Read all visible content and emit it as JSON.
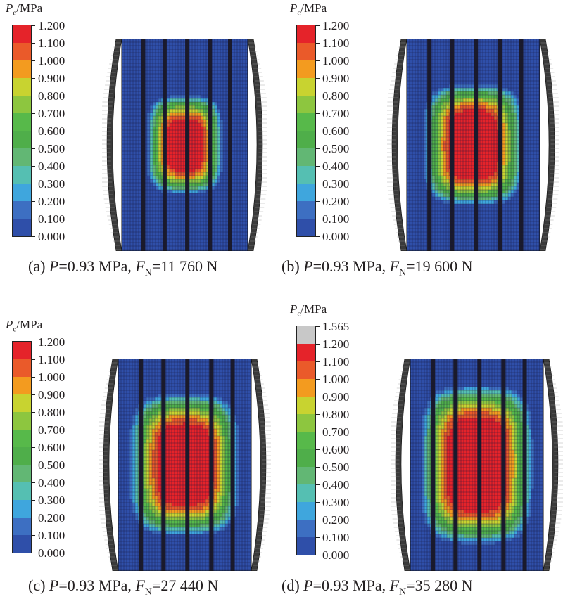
{
  "legend_title_var": "P",
  "legend_title_sub": "c",
  "legend_title_unit": "/MPa",
  "scale_standard": {
    "labels": [
      "1.200",
      "1.100",
      "1.000",
      "0.900",
      "0.800",
      "0.700",
      "0.600",
      "0.500",
      "0.400",
      "0.300",
      "0.200",
      "0.100",
      "0.000"
    ],
    "colors": [
      "#e5232a",
      "#ea5a2a",
      "#f39b1f",
      "#c8d330",
      "#8dc63f",
      "#57b94a",
      "#4fae4a",
      "#62b774",
      "#55bfb2",
      "#3fa6dd",
      "#3d6fc2",
      "#2f4fa9"
    ]
  },
  "scale_extended": {
    "labels": [
      "1.565",
      "1.200",
      "1.100",
      "1.000",
      "0.900",
      "0.800",
      "0.700",
      "0.600",
      "0.500",
      "0.400",
      "0.300",
      "0.200",
      "0.100",
      "0.000"
    ],
    "colors": [
      "#c8c8c8",
      "#e5232a",
      "#ea5a2a",
      "#f39b1f",
      "#c8d330",
      "#8dc63f",
      "#57b94a",
      "#4fae4a",
      "#62b774",
      "#55bfb2",
      "#3fa6dd",
      "#3d6fc2",
      "#2f4fa9"
    ]
  },
  "panels": [
    {
      "id": "a",
      "letter": "(a) ",
      "p_var": "P",
      "p_text": "=0.93 MPa, ",
      "f_var": "F",
      "f_sub": "N",
      "f_text": "=11 760 N",
      "peak_pressure": 1.1,
      "contact_height": 0.47,
      "contact_width": 0.63,
      "scale": "standard"
    },
    {
      "id": "b",
      "letter": "(b) ",
      "p_var": "P",
      "p_text": "=0.93 MPa, ",
      "f_var": "F",
      "f_sub": "N",
      "f_text": "=19 600 N",
      "peak_pressure": 1.15,
      "contact_height": 0.58,
      "contact_width": 0.78,
      "scale": "standard"
    },
    {
      "id": "c",
      "letter": "(c) ",
      "p_var": "P",
      "p_text": "=0.93 MPa, ",
      "f_var": "F",
      "f_sub": "N",
      "f_text": "=27 440 N",
      "peak_pressure": 1.15,
      "contact_height": 0.68,
      "contact_width": 0.86,
      "scale": "standard"
    },
    {
      "id": "d",
      "letter": "(d) ",
      "p_var": "P",
      "p_text": "=0.93 MPa, ",
      "f_var": "F",
      "f_sub": "N",
      "f_text": "=35 280 N",
      "peak_pressure": 1.2,
      "contact_height": 0.76,
      "contact_width": 0.88,
      "scale": "extended"
    }
  ]
}
